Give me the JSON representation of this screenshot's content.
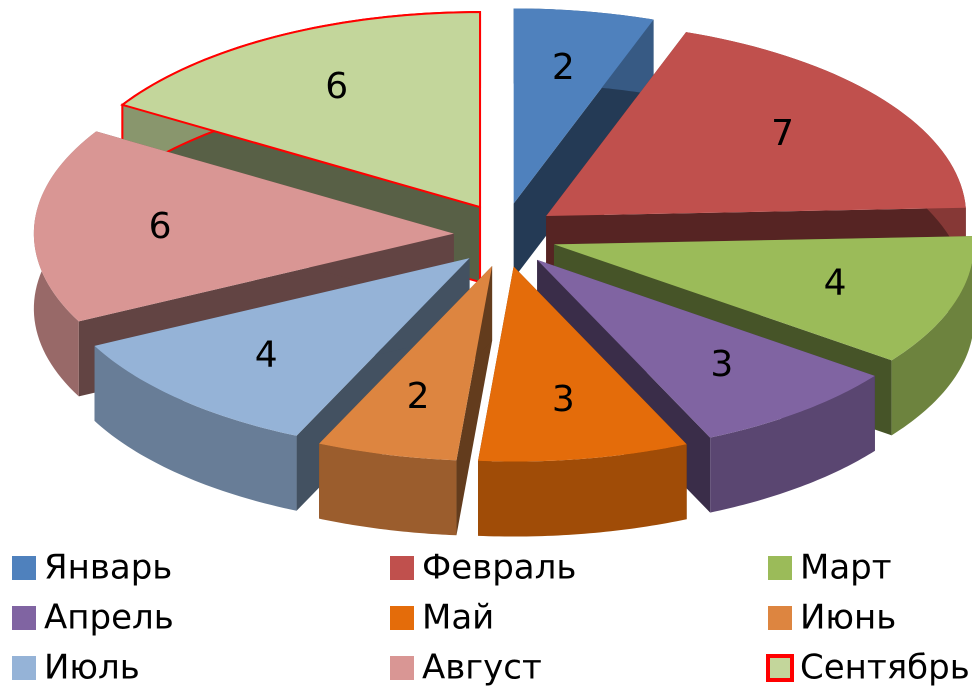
{
  "chart_data": {
    "type": "pie3d",
    "categories": [
      "Январь",
      "Февраль",
      "Март",
      "Апрель",
      "Май",
      "Июнь",
      "Июль",
      "Август",
      "Сентябрь"
    ],
    "values": [
      2,
      7,
      4,
      3,
      3,
      2,
      4,
      6,
      6
    ],
    "colors": [
      "#4f81bd",
      "#c0504d",
      "#9bbb59",
      "#8064a2",
      "#e46c0a",
      "#dd8540",
      "#95b3d7",
      "#d99694",
      "#c3d69b"
    ],
    "outline": [
      null,
      null,
      null,
      null,
      null,
      null,
      null,
      null,
      "#ff0000"
    ],
    "legend": "bottom"
  }
}
